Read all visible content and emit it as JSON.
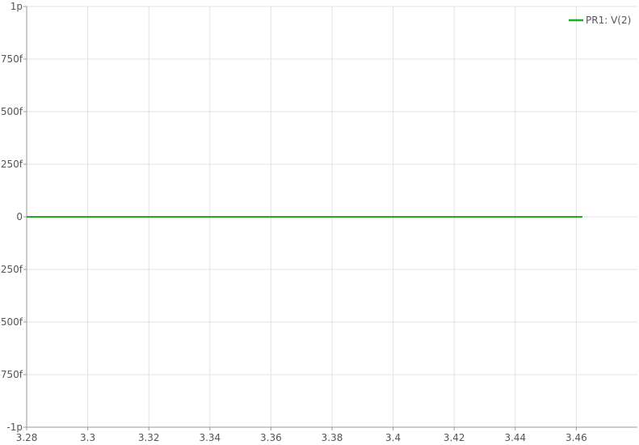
{
  "chart_data": {
    "type": "line",
    "title": "",
    "xlabel": "",
    "ylabel": "",
    "xlim": [
      3.28,
      3.48
    ],
    "ylim": [
      -1e-12,
      1e-12
    ],
    "x_ticks": [
      {
        "value": 3.28,
        "label": "3.28"
      },
      {
        "value": 3.3,
        "label": "3.3"
      },
      {
        "value": 3.32,
        "label": "3.32"
      },
      {
        "value": 3.34,
        "label": "3.34"
      },
      {
        "value": 3.36,
        "label": "3.36"
      },
      {
        "value": 3.38,
        "label": "3.38"
      },
      {
        "value": 3.4,
        "label": "3.4"
      },
      {
        "value": 3.42,
        "label": "3.42"
      },
      {
        "value": 3.44,
        "label": "3.44"
      },
      {
        "value": 3.46,
        "label": "3.46"
      }
    ],
    "y_ticks": [
      {
        "value": 1e-12,
        "label": "1p"
      },
      {
        "value": 7.5e-13,
        "label": "750f"
      },
      {
        "value": 5e-13,
        "label": "500f"
      },
      {
        "value": 2.5e-13,
        "label": "250f"
      },
      {
        "value": 0,
        "label": "0"
      },
      {
        "value": -2.5e-13,
        "label": "-250f"
      },
      {
        "value": -5e-13,
        "label": "-500f"
      },
      {
        "value": -7.5e-13,
        "label": "-750f"
      },
      {
        "value": -1e-12,
        "label": "-1p"
      }
    ],
    "grid": true,
    "legend_position": "top-right",
    "series": [
      {
        "name": "PR1: V(2)",
        "color": "#22aa22",
        "x": [
          3.28,
          3.462
        ],
        "y": [
          0,
          0
        ]
      }
    ]
  }
}
